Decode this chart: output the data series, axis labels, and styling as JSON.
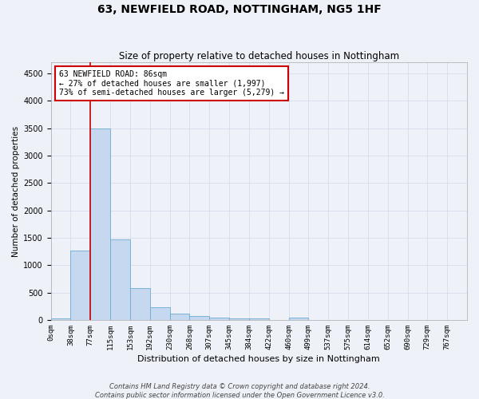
{
  "title1": "63, NEWFIELD ROAD, NOTTINGHAM, NG5 1HF",
  "title2": "Size of property relative to detached houses in Nottingham",
  "xlabel": "Distribution of detached houses by size in Nottingham",
  "ylabel": "Number of detached properties",
  "footnote1": "Contains HM Land Registry data © Crown copyright and database right 2024.",
  "footnote2": "Contains public sector information licensed under the Open Government Licence v3.0.",
  "bin_labels": [
    "0sqm",
    "38sqm",
    "77sqm",
    "115sqm",
    "153sqm",
    "192sqm",
    "230sqm",
    "268sqm",
    "307sqm",
    "345sqm",
    "384sqm",
    "422sqm",
    "460sqm",
    "499sqm",
    "537sqm",
    "575sqm",
    "614sqm",
    "652sqm",
    "690sqm",
    "729sqm",
    "767sqm"
  ],
  "bar_values": [
    30,
    1270,
    3500,
    1470,
    580,
    230,
    110,
    75,
    50,
    35,
    35,
    5,
    50,
    5,
    0,
    0,
    0,
    0,
    0,
    0,
    0
  ],
  "bar_color": "#c5d8ef",
  "bar_edge_color": "#6aaad4",
  "grid_color": "#d0d8e8",
  "vline_color": "#cc0000",
  "annotation_text": "63 NEWFIELD ROAD: 86sqm\n← 27% of detached houses are smaller (1,997)\n73% of semi-detached houses are larger (5,279) →",
  "annotation_box_color": "white",
  "annotation_box_edge": "#cc0000",
  "ylim": [
    0,
    4700
  ],
  "yticks": [
    0,
    500,
    1000,
    1500,
    2000,
    2500,
    3000,
    3500,
    4000,
    4500
  ],
  "background_color": "#eef2f8",
  "title1_fontsize": 10,
  "title2_fontsize": 8.5,
  "xlabel_fontsize": 8,
  "ylabel_fontsize": 7.5,
  "tick_fontsize": 6.5,
  "annot_fontsize": 7,
  "footnote_fontsize": 6
}
